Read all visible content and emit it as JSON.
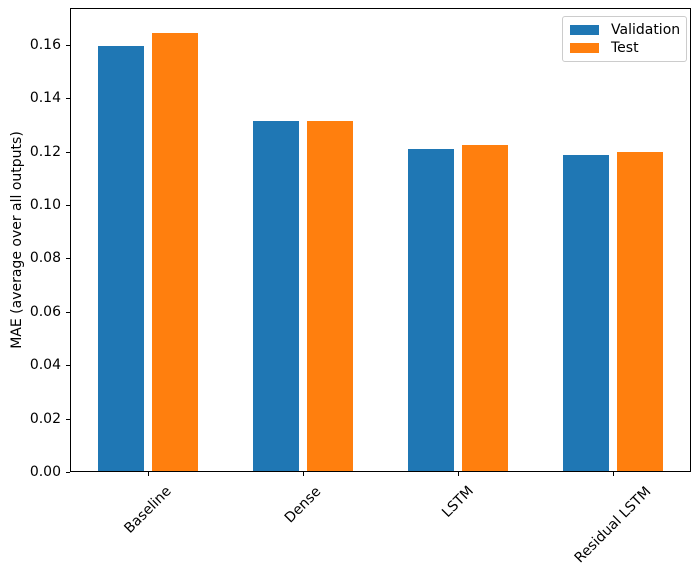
{
  "chart_data": {
    "type": "bar",
    "title": "",
    "xlabel": "",
    "ylabel": "MAE (average over all outputs)",
    "categories": [
      "Baseline",
      "Dense",
      "LSTM",
      "Residual LSTM"
    ],
    "series": [
      {
        "name": "Validation",
        "color": "#1f77b4",
        "values": [
          0.159,
          0.131,
          0.1205,
          0.1185
        ]
      },
      {
        "name": "Test",
        "color": "#ff7f0e",
        "values": [
          0.164,
          0.131,
          0.122,
          0.1195
        ]
      }
    ],
    "ylim": [
      0,
      0.173
    ],
    "ytick_labels": [
      "0.00",
      "0.02",
      "0.04",
      "0.06",
      "0.08",
      "0.10",
      "0.12",
      "0.14",
      "0.16"
    ],
    "xtick_rotation_deg": 45,
    "grid": false,
    "legend": {
      "position": "upper right",
      "entries": [
        "Validation",
        "Test"
      ]
    }
  }
}
